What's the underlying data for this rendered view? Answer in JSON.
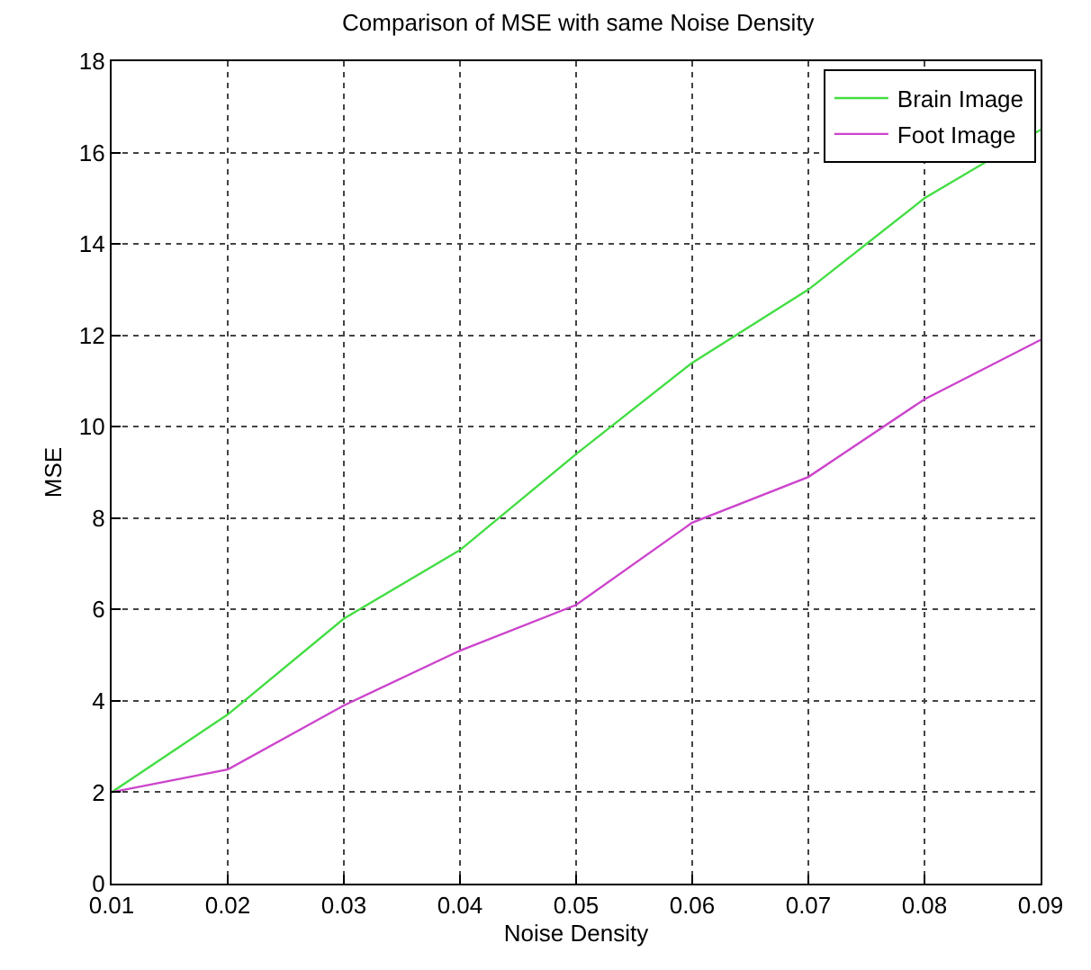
{
  "chart_data": {
    "type": "line",
    "title": "Comparison of MSE with same Noise Density",
    "xlabel": "Noise Density",
    "ylabel": "MSE",
    "x": [
      0.01,
      0.02,
      0.03,
      0.04,
      0.05,
      0.06,
      0.07,
      0.08,
      0.09
    ],
    "series": [
      {
        "name": "Brain Image",
        "color": "#44dd44",
        "values": [
          2.0,
          3.7,
          5.8,
          7.3,
          9.4,
          11.4,
          13.0,
          15.0,
          16.5
        ]
      },
      {
        "name": "Foot Image",
        "color": "#cc44cc",
        "values": [
          2.0,
          2.5,
          3.9,
          5.1,
          6.1,
          7.9,
          8.9,
          10.6,
          11.9
        ]
      }
    ],
    "xlim": [
      0.01,
      0.09
    ],
    "xticks": [
      0.01,
      0.02,
      0.03,
      0.04,
      0.05,
      0.06,
      0.07,
      0.08,
      0.09
    ],
    "ylim": [
      0,
      18
    ],
    "yticks": [
      0,
      2,
      4,
      6,
      8,
      10,
      12,
      14,
      16,
      18
    ],
    "grid": true,
    "legend": "top right",
    "marker": "none",
    "line_style": "solid"
  }
}
